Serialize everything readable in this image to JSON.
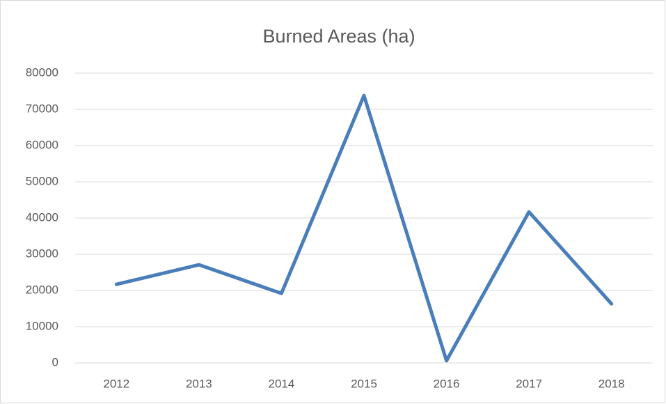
{
  "chart_data": {
    "type": "line",
    "title": "Burned Areas (ha)",
    "categories": [
      "2012",
      "2013",
      "2014",
      "2015",
      "2016",
      "2017",
      "2018"
    ],
    "series": [
      {
        "name": "Burned Areas (ha)",
        "color": "#4a7ebb",
        "values": [
          21700,
          27100,
          19200,
          73800,
          600,
          41700,
          16300
        ]
      }
    ],
    "ylim": [
      0,
      80000
    ],
    "yticks": [
      0,
      10000,
      20000,
      30000,
      40000,
      50000,
      60000,
      70000,
      80000
    ],
    "grid": true
  }
}
